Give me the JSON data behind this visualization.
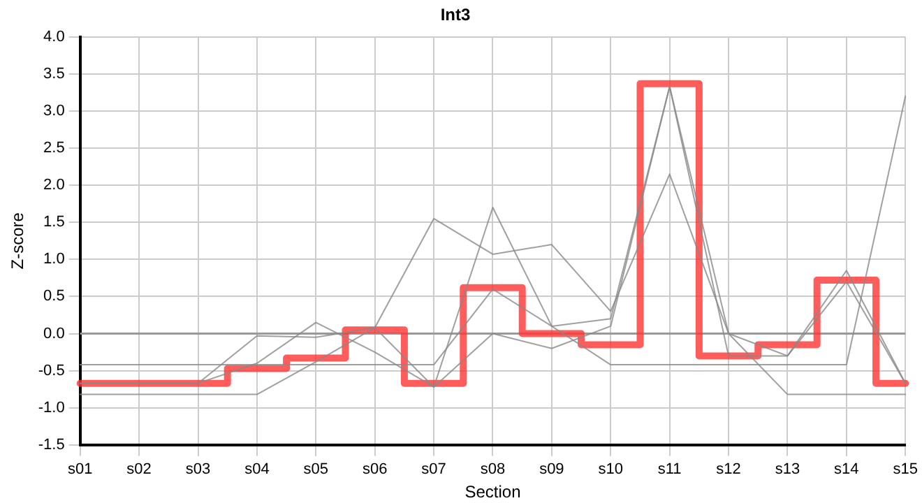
{
  "chart_data": {
    "type": "line",
    "title": "Int3",
    "xlabel": "Section",
    "ylabel": "Z-score",
    "categories": [
      "s01",
      "s02",
      "s03",
      "s04",
      "s05",
      "s06",
      "s07",
      "s08",
      "s09",
      "s10",
      "s11",
      "s12",
      "s13",
      "s14",
      "s15"
    ],
    "series": [
      {
        "color": "#888888",
        "values": [
          -0.82,
          -0.82,
          -0.82,
          -0.82,
          -0.38,
          0.08,
          -0.72,
          0.0,
          -0.2,
          0.1,
          3.33,
          0.0,
          -0.82,
          -0.82,
          -0.82
        ]
      },
      {
        "color": "#888888",
        "values": [
          -0.42,
          -0.42,
          -0.42,
          -0.42,
          -0.42,
          -0.42,
          -0.42,
          0.6,
          0.1,
          -0.42,
          -0.42,
          -0.42,
          -0.42,
          -0.42,
          3.2
        ]
      },
      {
        "color": "#888888",
        "values": [
          -0.67,
          -0.67,
          -0.67,
          -0.03,
          -0.05,
          0.08,
          1.55,
          1.07,
          1.2,
          0.3,
          2.15,
          0.0,
          -0.3,
          0.85,
          -0.67
        ]
      },
      {
        "color": "#888888",
        "values": [
          -0.67,
          -0.67,
          -0.67,
          -0.4,
          0.15,
          -0.25,
          -0.72,
          1.7,
          0.1,
          0.2,
          3.33,
          -0.3,
          -0.3,
          0.7,
          -0.67
        ]
      },
      {
        "type": "step",
        "color": "#ff3333",
        "values": [
          -0.67,
          -0.67,
          -0.67,
          -0.47,
          -0.33,
          0.05,
          -0.67,
          0.62,
          0.0,
          -0.15,
          3.37,
          -0.3,
          -0.15,
          0.72,
          -0.67
        ]
      }
    ],
    "ylim": [
      -1.5,
      4.0
    ],
    "yticks": [
      {
        "value": -1.5,
        "label": "-1.5"
      },
      {
        "value": -1,
        "label": "-1.0"
      },
      {
        "value": -0.5,
        "label": "-0.5"
      },
      {
        "value": 0,
        "label": "0.0"
      },
      {
        "value": 0.5,
        "label": "0.5"
      },
      {
        "value": 1,
        "label": "1.0"
      },
      {
        "value": 1.5,
        "label": "1.5"
      },
      {
        "value": 2,
        "label": "2.0"
      },
      {
        "value": 2.5,
        "label": "2.5"
      },
      {
        "value": 3,
        "label": "3.0"
      },
      {
        "value": 3.5,
        "label": "3.5"
      },
      {
        "value": 4,
        "label": "4.0"
      }
    ],
    "ref_lines": [
      {
        "axis": "y",
        "value": 0,
        "color": "#999999"
      }
    ],
    "grid": true,
    "legend": false,
    "marker": "none",
    "line_style": "solid"
  }
}
